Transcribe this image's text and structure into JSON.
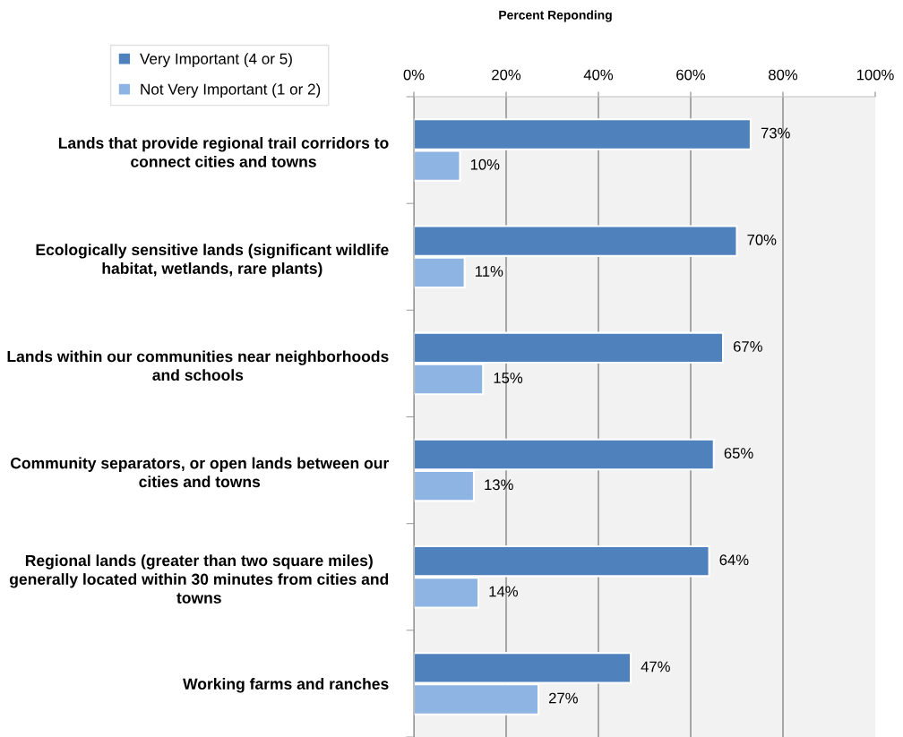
{
  "chart_data": {
    "type": "bar",
    "orientation": "horizontal",
    "xlabel": "Percent Reponding",
    "categories": [
      "Lands that provide regional trail corridors to\nconnect cities and towns",
      "Ecologically sensitive lands (significant wildlife\nhabitat, wetlands, rare plants)",
      "Lands within our communities near neighborhoods\nand schools",
      "Community separators, or open lands between our\ncities and towns",
      "Regional lands (greater than two square miles)\ngenerally located within 30 minutes from cities and\ntowns",
      "Working farms and ranches"
    ],
    "series": [
      {
        "name": "Very Important (4 or 5)",
        "color": "#4f81bd",
        "values": [
          73,
          70,
          67,
          65,
          64,
          47
        ],
        "value_labels": [
          "73%",
          "70%",
          "67%",
          "65%",
          "64%",
          "47%"
        ]
      },
      {
        "name": "Not Very Important (1 or 2)",
        "color": "#8eb4e3",
        "values": [
          10,
          11,
          15,
          13,
          14,
          27
        ],
        "value_labels": [
          "10%",
          "11%",
          "15%",
          "13%",
          "14%",
          "27%"
        ]
      }
    ],
    "xlim": [
      0,
      100
    ],
    "xticks": [
      {
        "value": 0,
        "label": "0%"
      },
      {
        "value": 20,
        "label": "20%"
      },
      {
        "value": 40,
        "label": "40%"
      },
      {
        "value": 60,
        "label": "60%"
      },
      {
        "value": 80,
        "label": "80%"
      },
      {
        "value": 100,
        "label": "100%"
      }
    ],
    "grid": "x",
    "legend": "top left"
  }
}
